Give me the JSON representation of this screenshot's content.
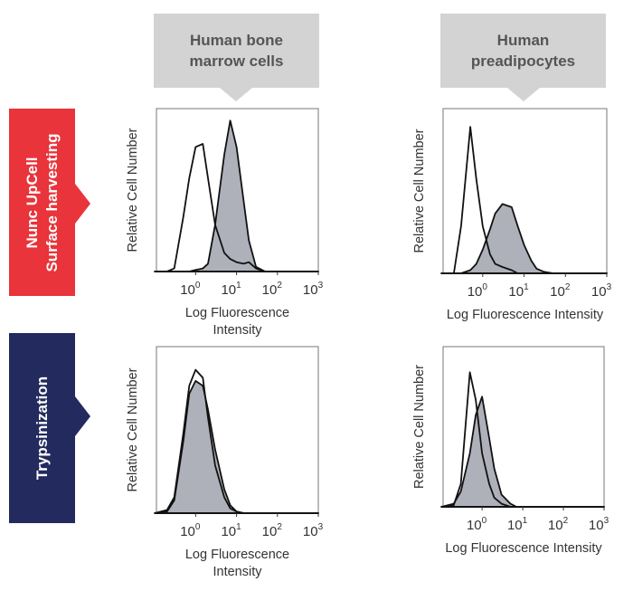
{
  "columns": [
    "Human bone marrow cells",
    "Human preadipocytes"
  ],
  "column_lines": [
    [
      "Human bone",
      "marrow cells"
    ],
    [
      "Human",
      "preadipocytes"
    ]
  ],
  "rows": [
    {
      "lines": [
        "Nunc UpCell",
        "Surface harvesting"
      ],
      "color": "#e8343a"
    },
    {
      "lines": [
        "Trypsinization"
      ],
      "color": "#222a5e"
    }
  ],
  "chart_data": [
    {
      "type": "area",
      "xscale": "log",
      "xlim": [
        0.11,
        1000
      ],
      "ylabel": "Relative Cell Number",
      "xlabel": [
        "Log Fluorescence",
        "Intensity"
      ],
      "xticks": [
        "10^0",
        "10^1",
        "10^2",
        "10^3"
      ],
      "x": [
        0.1,
        0.2,
        0.3,
        0.5,
        0.7,
        1,
        1.5,
        2,
        3,
        5,
        7,
        10,
        15,
        20,
        30,
        50,
        100,
        1000
      ],
      "series": [
        {
          "style": "open",
          "values": [
            0,
            0,
            0.02,
            0.35,
            0.6,
            0.8,
            0.82,
            0.6,
            0.3,
            0.12,
            0.08,
            0.06,
            0.05,
            0.06,
            0.02,
            0,
            0,
            0
          ]
        },
        {
          "style": "filled",
          "values": [
            0,
            0,
            0,
            0,
            0,
            0.01,
            0.02,
            0.05,
            0.3,
            0.75,
            0.97,
            0.8,
            0.45,
            0.2,
            0.03,
            0,
            0,
            0
          ]
        }
      ]
    },
    {
      "type": "area",
      "xscale": "log",
      "xlim": [
        0.11,
        1000
      ],
      "ylabel": "Relative Cell Number",
      "xlabel": [
        "Log Fluorescence Intensity"
      ],
      "xticks": [
        "10^0",
        "10^1",
        "10^2",
        "10^3"
      ],
      "x": [
        0.1,
        0.2,
        0.3,
        0.5,
        0.7,
        1,
        1.5,
        2,
        3,
        5,
        7,
        10,
        15,
        20,
        30,
        50,
        100,
        1000
      ],
      "series": [
        {
          "style": "open",
          "values": [
            0,
            0,
            0.3,
            0.93,
            0.6,
            0.3,
            0.12,
            0.06,
            0.04,
            0.02,
            0,
            0,
            0,
            0,
            0,
            0,
            0,
            0
          ]
        },
        {
          "style": "filled",
          "values": [
            0,
            0,
            0,
            0.02,
            0.06,
            0.15,
            0.28,
            0.38,
            0.44,
            0.42,
            0.3,
            0.18,
            0.08,
            0.03,
            0.01,
            0,
            0,
            0
          ]
        }
      ]
    },
    {
      "type": "area",
      "xscale": "log",
      "xlim": [
        0.11,
        1000
      ],
      "ylabel": "Relative Cell Number",
      "xlabel": [
        "Log Fluorescence",
        "Intensity"
      ],
      "xticks": [
        "10^0",
        "10^1",
        "10^2",
        "10^3"
      ],
      "x": [
        0.1,
        0.2,
        0.3,
        0.5,
        0.7,
        1,
        1.5,
        2,
        3,
        5,
        7,
        10,
        15,
        20,
        30,
        50,
        100,
        1000
      ],
      "series": [
        {
          "style": "open",
          "values": [
            0,
            0.02,
            0.1,
            0.5,
            0.8,
            0.9,
            0.85,
            0.6,
            0.3,
            0.1,
            0.03,
            0.01,
            0,
            0,
            0,
            0,
            0,
            0
          ]
        },
        {
          "style": "filled",
          "values": [
            0,
            0.01,
            0.08,
            0.45,
            0.75,
            0.83,
            0.8,
            0.65,
            0.4,
            0.15,
            0.05,
            0.01,
            0,
            0,
            0,
            0,
            0,
            0
          ]
        }
      ]
    },
    {
      "type": "area",
      "xscale": "log",
      "xlim": [
        0.11,
        1000
      ],
      "ylabel": "Relative Cell Number",
      "xlabel": [
        "Log Fluorescence Intensity"
      ],
      "xticks": [
        "10^0",
        "10^1",
        "10^2",
        "10^3"
      ],
      "x": [
        0.1,
        0.2,
        0.3,
        0.5,
        0.7,
        1,
        1.5,
        2,
        3,
        5,
        7,
        10,
        15,
        20,
        30,
        50,
        100,
        1000
      ],
      "series": [
        {
          "style": "open",
          "values": [
            0,
            0.01,
            0.15,
            0.88,
            0.7,
            0.35,
            0.15,
            0.06,
            0.02,
            0,
            0,
            0,
            0,
            0,
            0,
            0,
            0,
            0
          ]
        },
        {
          "style": "filled",
          "values": [
            0,
            0.02,
            0.1,
            0.35,
            0.6,
            0.72,
            0.45,
            0.25,
            0.08,
            0.02,
            0,
            0,
            0,
            0,
            0,
            0,
            0,
            0
          ]
        }
      ]
    }
  ],
  "colors": {
    "fill": "#aeb1ba",
    "line": "#111111",
    "header": "#d3d3d3"
  }
}
